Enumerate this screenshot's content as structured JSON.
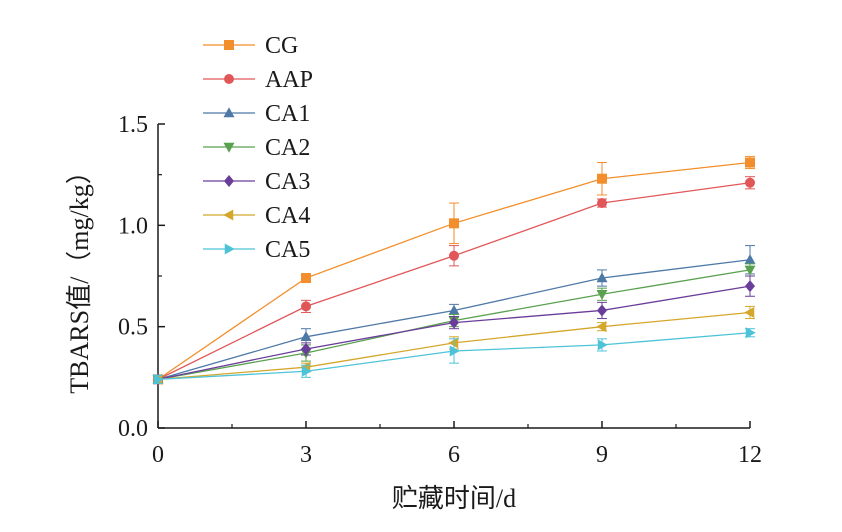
{
  "chart_data": {
    "type": "line",
    "title": "",
    "xlabel": "贮藏时间/d",
    "ylabel": "TBARS值/（mg/kg）",
    "x": [
      0,
      3,
      6,
      9,
      12
    ],
    "xticks": [
      "0",
      "3",
      "6",
      "9",
      "12"
    ],
    "xlim": [
      0,
      12
    ],
    "yticks": [
      "0.0",
      "0.5",
      "1.0",
      "1.5"
    ],
    "ylim": [
      0,
      1.5
    ],
    "grid": false,
    "legend_position": "top-left",
    "series": [
      {
        "name": "CG",
        "color": "#f28e2b",
        "marker": "square",
        "values": [
          0.24,
          0.74,
          1.01,
          1.23,
          1.31
        ],
        "errors": [
          0.02,
          0.02,
          0.1,
          0.08,
          0.03
        ]
      },
      {
        "name": "AAP",
        "color": "#e15759",
        "marker": "circle",
        "values": [
          0.24,
          0.6,
          0.85,
          1.11,
          1.21
        ],
        "errors": [
          0.02,
          0.03,
          0.05,
          0.02,
          0.03
        ]
      },
      {
        "name": "CA1",
        "color": "#4e79a7",
        "marker": "triangle-up",
        "values": [
          0.24,
          0.45,
          0.58,
          0.74,
          0.83
        ],
        "errors": [
          0.02,
          0.04,
          0.03,
          0.04,
          0.07
        ]
      },
      {
        "name": "CA2",
        "color": "#59a14f",
        "marker": "triangle-down",
        "values": [
          0.24,
          0.37,
          0.53,
          0.66,
          0.78
        ],
        "errors": [
          0.02,
          0.04,
          0.03,
          0.03,
          0.03
        ]
      },
      {
        "name": "CA3",
        "color": "#6a3d9a",
        "marker": "diamond",
        "values": [
          0.24,
          0.39,
          0.52,
          0.58,
          0.7
        ],
        "errors": [
          0.02,
          0.03,
          0.03,
          0.04,
          0.05
        ]
      },
      {
        "name": "CA4",
        "color": "#d4a72c",
        "marker": "triangle-left",
        "values": [
          0.24,
          0.3,
          0.42,
          0.5,
          0.57
        ],
        "errors": [
          0.02,
          0.02,
          0.03,
          0.02,
          0.03
        ]
      },
      {
        "name": "CA5",
        "color": "#4ec3d8",
        "marker": "triangle-right",
        "values": [
          0.24,
          0.28,
          0.38,
          0.41,
          0.47
        ],
        "errors": [
          0.02,
          0.03,
          0.06,
          0.03,
          0.02
        ]
      }
    ]
  }
}
